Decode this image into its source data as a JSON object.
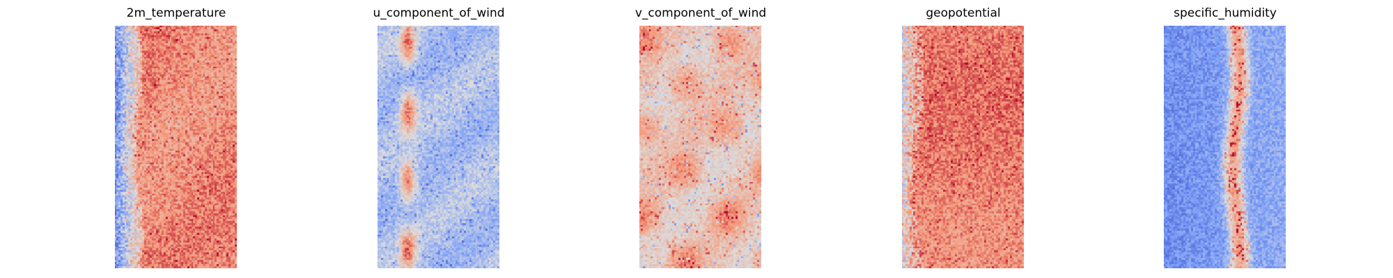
{
  "chart_data": [
    {
      "type": "heatmap",
      "title": "2m_temperature",
      "colormap": "coolwarm",
      "pattern": "left third cool blue with noisy pale speckles, remainder warm orange-red with darker red speckles",
      "relative_range": [
        0,
        1
      ]
    },
    {
      "type": "heatmap",
      "title": "u_component_of_wind",
      "colormap": "coolwarm",
      "pattern": "mostly light blue field with scattered dark blue spots and a few red patches near the left-center",
      "relative_range": [
        0,
        1
      ]
    },
    {
      "type": "heatmap",
      "title": "v_component_of_wind",
      "colormap": "coolwarm",
      "pattern": "mostly pale peach field with scattered red blobs and a few blue spots",
      "relative_range": [
        0,
        1
      ]
    },
    {
      "type": "heatmap",
      "title": "geopotential",
      "colormap": "coolwarm",
      "pattern": "narrow cool speckled strip on the left, rest warm orange-red with dark red speckles",
      "relative_range": [
        0,
        1
      ]
    },
    {
      "type": "heatmap",
      "title": "specific_humidity",
      "colormap": "coolwarm",
      "pattern": "blue field, darker blue on the left, with a vertical band of pale and red speckles down the middle",
      "relative_range": [
        0,
        1
      ]
    }
  ]
}
